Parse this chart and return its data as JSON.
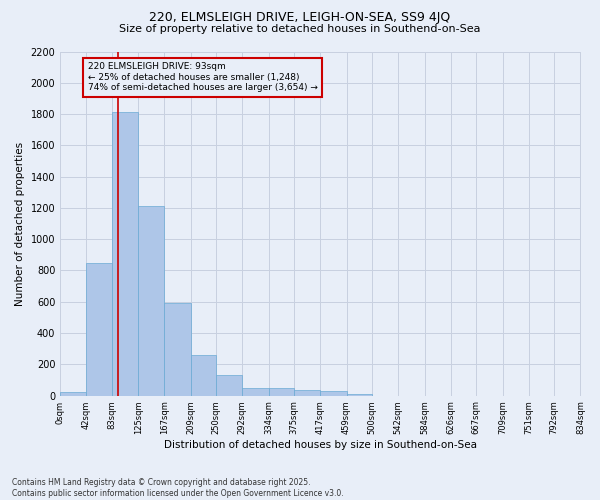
{
  "title1": "220, ELMSLEIGH DRIVE, LEIGH-ON-SEA, SS9 4JQ",
  "title2": "Size of property relative to detached houses in Southend-on-Sea",
  "xlabel": "Distribution of detached houses by size in Southend-on-Sea",
  "ylabel": "Number of detached properties",
  "bin_edges": [
    0,
    42,
    83,
    125,
    167,
    209,
    250,
    292,
    334,
    375,
    417,
    459,
    500,
    542,
    584,
    626,
    667,
    709,
    751,
    792,
    834
  ],
  "bar_heights": [
    25,
    848,
    1810,
    1210,
    590,
    260,
    130,
    50,
    48,
    35,
    28,
    8,
    0,
    0,
    0,
    0,
    0,
    0,
    0,
    0
  ],
  "bar_color": "#aec6e8",
  "bar_edge_color": "#6aaad4",
  "grid_color": "#c8d0e0",
  "bg_color": "#e8eef8",
  "vline_x": 93,
  "vline_color": "#cc0000",
  "annotation_text": "220 ELMSLEIGH DRIVE: 93sqm\n← 25% of detached houses are smaller (1,248)\n74% of semi-detached houses are larger (3,654) →",
  "annotation_box_color": "#cc0000",
  "ylim": [
    0,
    2200
  ],
  "yticks": [
    0,
    200,
    400,
    600,
    800,
    1000,
    1200,
    1400,
    1600,
    1800,
    2000,
    2200
  ],
  "footer_line1": "Contains HM Land Registry data © Crown copyright and database right 2025.",
  "footer_line2": "Contains public sector information licensed under the Open Government Licence v3.0.",
  "tick_labels": [
    "0sqm",
    "42sqm",
    "83sqm",
    "125sqm",
    "167sqm",
    "209sqm",
    "250sqm",
    "292sqm",
    "334sqm",
    "375sqm",
    "417sqm",
    "459sqm",
    "500sqm",
    "542sqm",
    "584sqm",
    "626sqm",
    "667sqm",
    "709sqm",
    "751sqm",
    "792sqm",
    "834sqm"
  ]
}
